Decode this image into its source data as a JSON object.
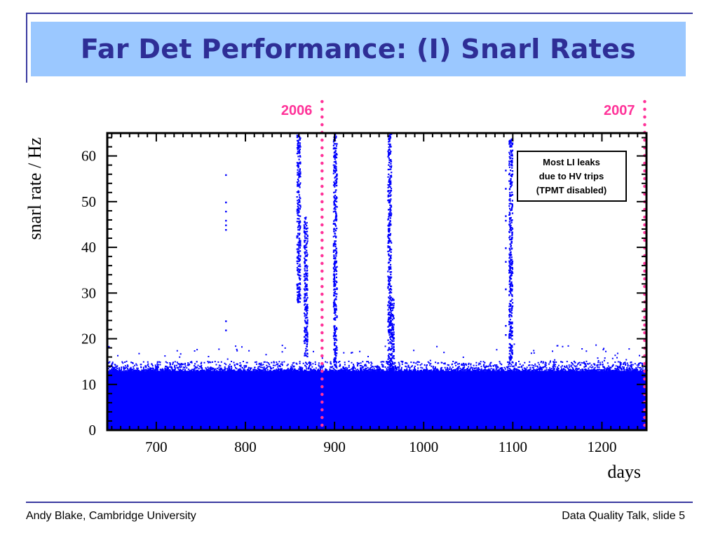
{
  "slide": {
    "title": "Far Det Performance: (I) Snarl Rates",
    "footer_left": "Andy Blake, Cambridge University",
    "footer_right": "Data Quality Talk, slide 5"
  },
  "colors": {
    "title_background": "#9bc8ff",
    "title_text": "#2e2e96",
    "rule": "#3a3aa0",
    "data": "#0000ff",
    "marker": "#ff3399"
  },
  "chart_data": {
    "type": "scatter",
    "title": "",
    "xlabel": "days",
    "ylabel": "snarl rate / Hz",
    "xlim": [
      645,
      1250
    ],
    "ylim": [
      0,
      65
    ],
    "xticks": [
      700,
      800,
      900,
      1000,
      1100,
      1200
    ],
    "yticks": [
      0,
      10,
      20,
      30,
      40,
      50,
      60
    ],
    "grid": false,
    "legend": "none",
    "series": [
      {
        "color": "#0000ff",
        "baseline_band": {
          "x_range": [
            645,
            1250
          ],
          "dense_y_range": [
            0,
            13
          ],
          "upper_scatter_y": 15,
          "max_scatter_y": 19
        },
        "spikes": [
          {
            "x": 778,
            "y": [
              22,
              24,
              44,
              45,
              46,
              48,
              50,
              56
            ]
          },
          {
            "x": 859,
            "y_range": [
              28,
              65
            ]
          },
          {
            "x": 867,
            "y_range": [
              16,
              47
            ]
          },
          {
            "x": 900,
            "y_range": [
              14,
              65
            ]
          },
          {
            "x": 961,
            "y_range": [
              13,
              65
            ]
          },
          {
            "x": 964,
            "y_range": [
              13,
              29
            ]
          },
          {
            "x": 1092,
            "y": [
              21,
              23,
              31,
              37,
              40,
              46,
              47,
              53,
              57
            ]
          },
          {
            "x": 1097,
            "y_range": [
              15,
              64
            ]
          }
        ]
      }
    ],
    "year_markers": [
      {
        "x": 886,
        "label": "2006"
      },
      {
        "x": 1248,
        "label": "2007"
      }
    ],
    "annotation": {
      "lines": [
        "Most LI leaks",
        "due to HV trips",
        "(TPMT disabled)"
      ]
    }
  }
}
